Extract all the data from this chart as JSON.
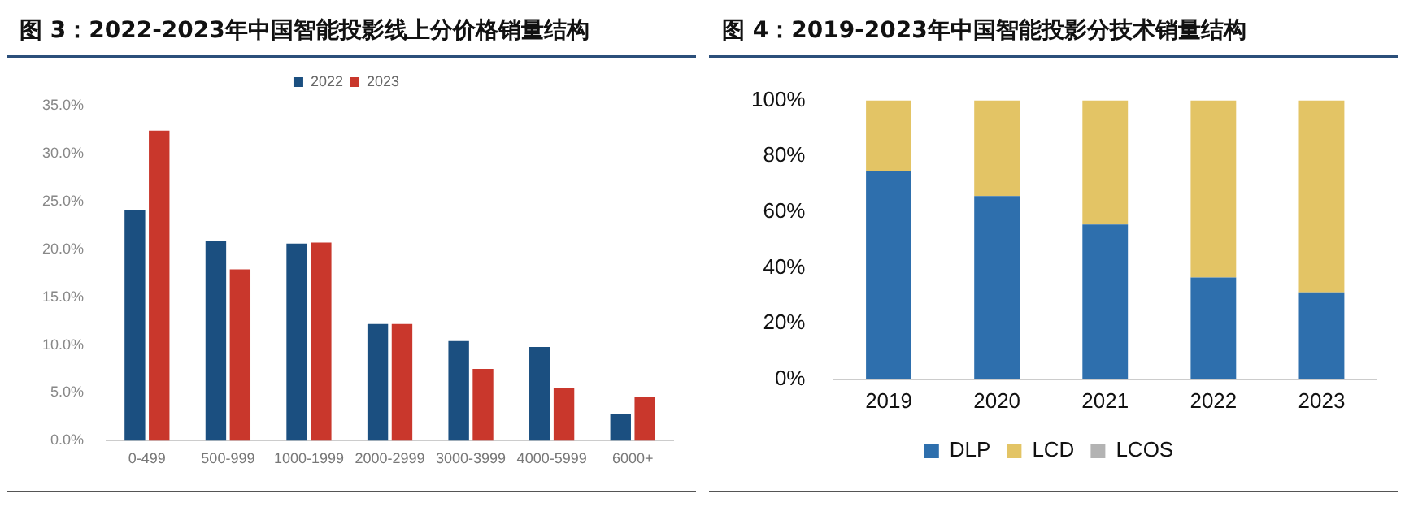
{
  "chart_data": [
    {
      "type": "bar",
      "title": "图 3：2022-2023年中国智能投影线上分价格销量结构",
      "categories": [
        "0-499",
        "500-999",
        "1000-1999",
        "2000-2999",
        "3000-3999",
        "4000-5999",
        "6000+"
      ],
      "series": [
        {
          "name": "2022",
          "color": "#1b4f80",
          "values": [
            24.1,
            20.9,
            20.6,
            12.2,
            10.4,
            9.8,
            2.8
          ]
        },
        {
          "name": "2023",
          "color": "#c9372c",
          "values": [
            32.4,
            17.9,
            20.7,
            12.2,
            7.5,
            5.5,
            4.6
          ]
        }
      ],
      "ylim": [
        0,
        35
      ],
      "yticks": [
        {
          "value": 0,
          "label": "0.0%"
        },
        {
          "value": 5,
          "label": "5.0%"
        },
        {
          "value": 10,
          "label": "10.0%"
        },
        {
          "value": 15,
          "label": "15.0%"
        },
        {
          "value": 20,
          "label": "20.0%"
        },
        {
          "value": 25,
          "label": "25.0%"
        },
        {
          "value": 30,
          "label": "30.0%"
        },
        {
          "value": 35,
          "label": "35.0%"
        }
      ],
      "grid": false,
      "legend": "top"
    },
    {
      "type": "bar",
      "title": "图 4：2019-2023年中国智能投影分技术销量结构",
      "categories": [
        "2019",
        "2020",
        "2021",
        "2022",
        "2023"
      ],
      "stacked": true,
      "series": [
        {
          "name": "DLP",
          "color": "#2e6fad",
          "values": [
            74.7,
            65.7,
            55.5,
            36.5,
            31.2
          ]
        },
        {
          "name": "LCD",
          "color": "#e3c465",
          "values": [
            25.3,
            34.3,
            44.5,
            63.5,
            68.8
          ]
        },
        {
          "name": "LCOS",
          "color": "#b3b3b3",
          "values": [
            0,
            0,
            0,
            0,
            null
          ]
        }
      ],
      "ylim": [
        0,
        100
      ],
      "yticks": [
        {
          "value": 0,
          "label": "0%"
        },
        {
          "value": 20,
          "label": "20%"
        },
        {
          "value": 40,
          "label": "40%"
        },
        {
          "value": 60,
          "label": "60%"
        },
        {
          "value": 80,
          "label": "80%"
        },
        {
          "value": 100,
          "label": "100%"
        }
      ],
      "grid": false,
      "legend": "bottom"
    }
  ]
}
